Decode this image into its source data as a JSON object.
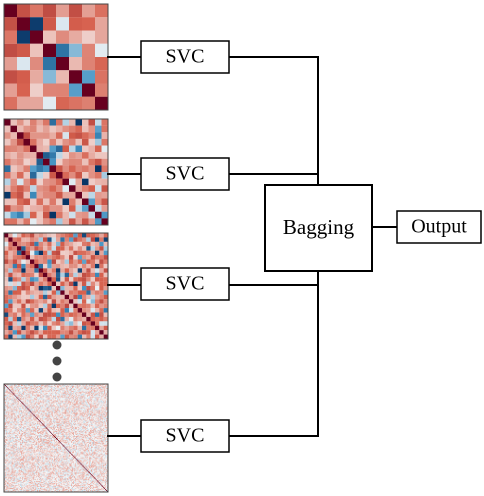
{
  "diagram": {
    "classifier_label": "SVC",
    "bagging_label": "Bagging",
    "output_label": "Output",
    "matrices": [
      {
        "size": 8,
        "seed": 3
      },
      {
        "size": 16,
        "seed": 7
      },
      {
        "size": 24,
        "seed": 11
      },
      {
        "size": 110,
        "seed": 19
      }
    ],
    "colors": {
      "strong_positive": "#67001f",
      "positive": "#d6604d",
      "neutral": "#f7f7f7",
      "negative": "#4393c3",
      "strong_negative": "#053061"
    }
  }
}
